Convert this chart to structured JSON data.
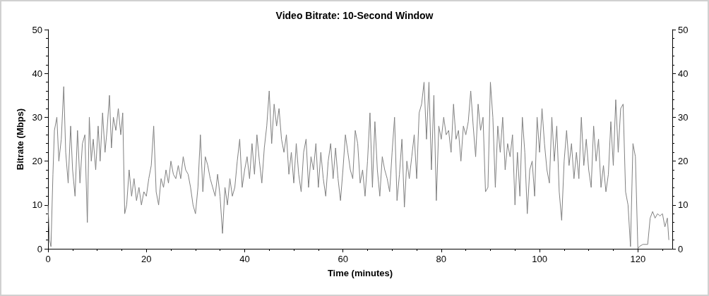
{
  "chart_data": {
    "type": "line",
    "title": "Video Bitrate: 10-Second Window",
    "xlabel": "Time (minutes)",
    "ylabel": "Bitrate (Mbps)",
    "x": [
      0,
      0.3,
      0.6,
      1,
      1.3,
      1.8,
      2.2,
      2.7,
      3.2,
      3.6,
      4.1,
      4.6,
      5,
      5.5,
      6,
      6.5,
      7,
      7.5,
      8,
      8.4,
      8.8,
      9.2,
      9.7,
      10.2,
      10.6,
      11.1,
      11.6,
      12,
      12.5,
      12.9,
      13.3,
      13.8,
      14.3,
      14.8,
      15.2,
      15.6,
      16,
      16.5,
      17,
      17.5,
      18,
      18.5,
      19,
      19.5,
      20,
      20.5,
      21,
      21.5,
      22,
      22.5,
      23,
      23.5,
      24,
      24.5,
      25,
      25.5,
      26,
      26.5,
      27,
      27.5,
      28,
      28.5,
      29,
      29.5,
      30,
      30.5,
      31,
      31.5,
      32,
      32.5,
      33,
      33.5,
      34,
      34.5,
      35,
      35.5,
      36,
      36.5,
      37,
      37.5,
      38,
      38.5,
      39,
      39.5,
      40,
      40.5,
      41,
      41.5,
      42,
      42.5,
      43,
      43.5,
      44,
      44.5,
      45,
      45.5,
      46,
      46.5,
      47,
      47.5,
      48,
      48.5,
      49,
      49.5,
      50,
      50.5,
      51,
      51.5,
      52,
      52.5,
      53,
      53.5,
      54,
      54.5,
      55,
      55.5,
      56,
      56.5,
      57,
      57.5,
      58,
      58.5,
      59,
      59.5,
      60,
      60.5,
      61,
      61.5,
      62,
      62.5,
      63,
      63.5,
      64,
      64.5,
      65,
      65.5,
      66,
      66.5,
      67,
      67.5,
      68,
      68.5,
      69,
      69.5,
      70,
      70.5,
      71,
      71.5,
      72,
      72.5,
      73,
      73.5,
      74,
      74.5,
      75,
      75.5,
      76,
      76.5,
      77,
      77.5,
      78,
      78.5,
      79,
      79.5,
      80,
      80.5,
      81,
      81.5,
      82,
      82.5,
      83,
      83.5,
      84,
      84.5,
      85,
      85.5,
      86,
      86.5,
      87,
      87.5,
      88,
      88.5,
      89,
      89.5,
      90,
      90.5,
      91,
      91.5,
      92,
      92.5,
      93,
      93.5,
      94,
      94.5,
      95,
      95.5,
      96,
      96.5,
      97,
      97.5,
      98,
      98.5,
      99,
      99.5,
      100,
      100.5,
      101,
      101.5,
      102,
      102.5,
      103,
      103.5,
      104,
      104.5,
      105,
      105.5,
      106,
      106.5,
      107,
      107.5,
      108,
      108.5,
      109,
      109.5,
      110,
      110.5,
      111,
      111.5,
      112,
      112.5,
      113,
      113.5,
      114,
      114.5,
      115,
      115.5,
      116,
      116.5,
      117,
      117.5,
      118,
      118.5,
      119,
      119.5,
      120,
      120.3,
      121,
      122,
      122.5,
      123,
      123.5,
      124,
      124.5,
      125,
      125.5,
      126,
      126.3
    ],
    "series": [
      {
        "color": "#808080",
        "values": [
          10,
          2,
          0.5,
          17,
          27,
          30,
          20,
          25,
          37,
          22,
          15,
          28,
          18,
          12,
          27,
          15,
          24,
          26,
          6,
          30,
          20,
          25,
          18,
          28,
          20,
          31,
          22,
          27,
          35,
          23,
          30,
          27,
          32,
          26,
          31,
          8,
          10,
          18,
          12,
          16,
          11,
          14,
          10,
          13,
          12,
          16,
          19,
          28,
          13,
          10,
          16,
          14,
          18,
          15,
          20,
          17,
          16,
          19,
          16,
          21,
          18,
          17,
          14,
          10,
          8,
          14,
          26,
          13,
          21,
          19,
          16,
          14,
          12,
          17,
          12,
          3.5,
          14,
          10,
          16,
          12,
          14,
          20,
          25,
          14,
          18,
          21,
          16,
          24,
          17,
          26,
          20,
          15,
          23,
          28,
          36,
          24,
          33,
          28,
          32,
          25,
          22,
          26,
          17,
          22,
          15,
          24,
          17,
          13,
          22,
          25,
          14,
          21,
          18,
          24,
          14,
          22,
          16,
          12,
          20,
          24,
          16,
          23,
          16,
          11,
          18,
          26,
          22,
          18,
          16,
          27,
          24,
          15,
          18,
          12,
          20,
          31,
          14,
          29,
          18,
          12,
          21,
          18,
          16,
          13,
          22,
          30,
          11,
          17,
          25,
          9.5,
          20,
          16,
          21,
          26,
          16,
          31,
          33,
          38,
          25,
          38,
          18,
          35,
          11,
          28,
          25,
          30,
          26,
          27,
          22,
          33,
          25,
          27,
          20,
          28,
          26,
          29,
          36,
          28,
          21,
          33,
          27,
          30,
          13,
          14,
          38,
          30,
          14,
          28,
          22,
          30,
          18,
          24,
          21,
          26,
          10,
          22,
          12,
          30,
          22,
          8,
          18,
          20,
          12,
          30,
          22,
          32,
          24,
          18,
          15,
          30,
          20,
          28,
          13,
          6.5,
          20,
          27,
          19,
          24,
          16,
          22,
          16,
          30,
          19,
          25,
          18,
          14,
          28,
          20,
          25,
          14,
          19,
          13,
          17,
          29,
          19,
          34,
          22,
          32,
          33,
          13,
          10,
          0.5,
          24,
          21,
          0,
          0.5,
          1,
          1,
          7,
          8.5,
          7,
          8,
          7.5,
          8,
          5,
          7,
          2
        ]
      }
    ],
    "xlim": [
      0,
      127
    ],
    "xticks": [
      0,
      20,
      40,
      60,
      80,
      100,
      120
    ],
    "ylim": [
      0,
      50
    ],
    "yticks": [
      0,
      10,
      20,
      30,
      40,
      50
    ],
    "y2lim": [
      0,
      50
    ],
    "y2ticks": [
      0,
      10,
      20,
      30,
      40,
      50
    ],
    "grid": false,
    "marker": "none",
    "line_style": "solid"
  }
}
